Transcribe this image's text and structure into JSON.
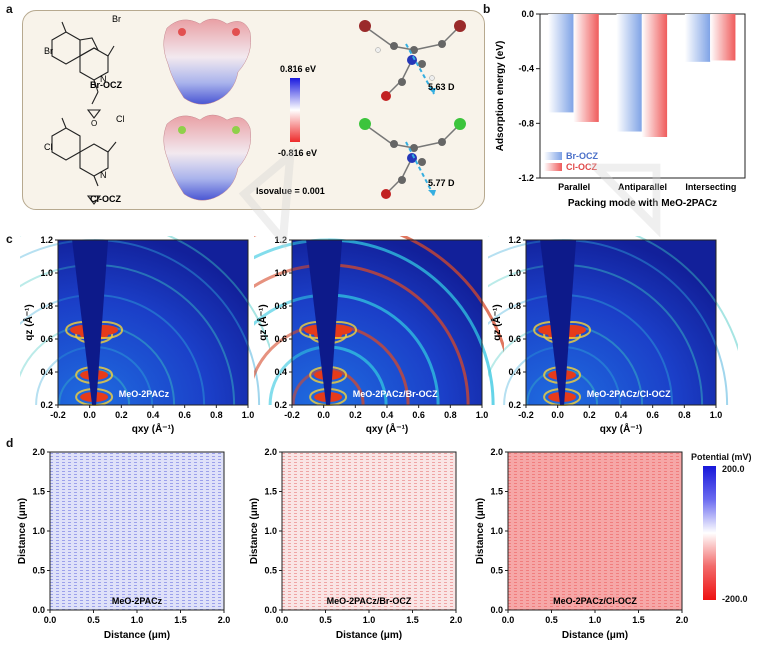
{
  "panels": {
    "a": {
      "letter": "a",
      "mol1": "Br-OCZ",
      "mol2": "Cl-OCZ",
      "esp_max": "0.816 eV",
      "esp_min": "-0.816 eV",
      "isovalue": "Isovalue = 0.001",
      "dipole1": "5.63 D",
      "dipole2": "5.77 D",
      "atoms": {
        "br": "Br",
        "cl": "Cl",
        "n": "N",
        "o": "O"
      }
    },
    "b": {
      "letter": "b"
    },
    "c": {
      "letter": "c",
      "images": [
        {
          "label": "MeO-2PACz"
        },
        {
          "label": "MeO-2PACz/Br-OCZ"
        },
        {
          "label": "MeO-2PACz/Cl-OCZ"
        }
      ],
      "xlabel": "qxy (Å⁻¹)",
      "ylabel": "qz (Å⁻¹)",
      "xticks": [
        "-0.2",
        "0.0",
        "0.2",
        "0.4",
        "0.6",
        "0.8",
        "1.0"
      ],
      "yticks": [
        "0.2",
        "0.4",
        "0.6",
        "0.8",
        "1.0",
        "1.2"
      ]
    },
    "d": {
      "letter": "d",
      "images": [
        {
          "label": "MeO-2PACz",
          "tint": "#7f86e6"
        },
        {
          "label": "MeO-2PACz/Br-OCZ",
          "tint": "#ea8a8a"
        },
        {
          "label": "MeO-2PACz/Cl-OCZ",
          "tint": "#f06d6d"
        }
      ],
      "xlabel": "Distance (μm)",
      "ylabel": "Distance (μm)",
      "ticks": [
        "0.0",
        "0.5",
        "1.0",
        "1.5",
        "2.0"
      ],
      "colorbar_title": "Potential (mV)",
      "colorbar_max": "200.0",
      "colorbar_min": "-200.0"
    }
  },
  "chart_data": {
    "type": "bar",
    "categories": [
      "Parallel",
      "Antiparallel",
      "Intersecting"
    ],
    "series": [
      {
        "name": "Br-OCZ",
        "values": [
          -0.72,
          -0.86,
          -0.35
        ],
        "color": "#7fa3e6"
      },
      {
        "name": "Cl-OCZ",
        "values": [
          -0.79,
          -0.9,
          -0.34
        ],
        "color": "#ef5b5b"
      }
    ],
    "xlabel": "Packing mode with MeO-2PACz",
    "ylabel": "Adsorption energy (eV)",
    "ylim": [
      -1.2,
      0.0
    ],
    "yticks": [
      "0.0",
      "-0.4",
      "-0.8",
      "-1.2"
    ],
    "legend_position": "bottom-left"
  }
}
